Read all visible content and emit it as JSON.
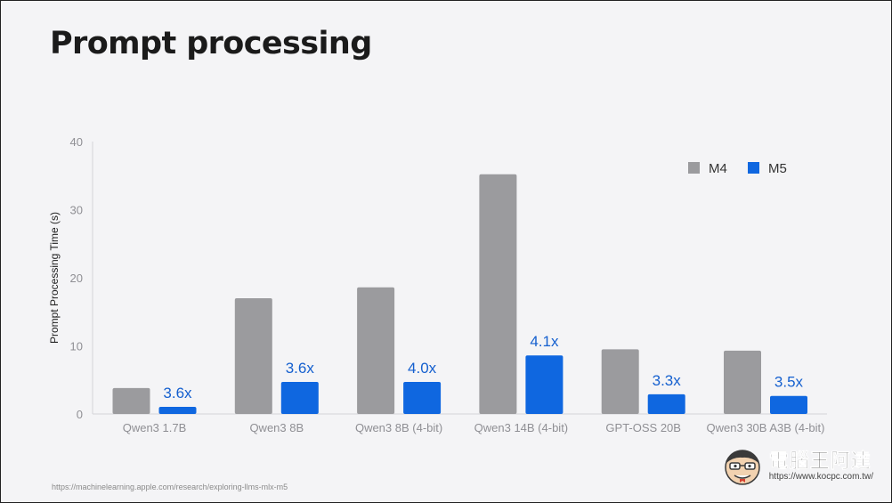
{
  "page": {
    "title": "Prompt processing",
    "source": "https://machinelearning.apple.com/research/exploring-llms-mlx-m5"
  },
  "watermark": {
    "brand": "電腦王阿達",
    "url": "https://www.kocpc.com.tw/"
  },
  "colors": {
    "m4": "#9b9b9e",
    "m5": "#0f67e0",
    "label": "#1560cf",
    "axis": "#d4d4d8",
    "tick": "#8f8f94"
  },
  "chart_data": {
    "type": "bar",
    "title": "Prompt processing",
    "xlabel": "",
    "ylabel": "Prompt Processing Time (s)",
    "ylim": [
      0,
      40
    ],
    "yticks": [
      0,
      10,
      20,
      30,
      40
    ],
    "grid": false,
    "legend": "top-right",
    "categories": [
      "Qwen3 1.7B",
      "Qwen3 8B",
      "Qwen3 8B (4-bit)",
      "Qwen3 14B (4-bit)",
      "GPT-OSS 20B",
      "Qwen3 30B A3B (4-bit)"
    ],
    "series": [
      {
        "name": "M4",
        "values": [
          3.8,
          17.0,
          18.6,
          35.2,
          9.5,
          9.3
        ]
      },
      {
        "name": "M5",
        "values": [
          1.05,
          4.7,
          4.7,
          8.6,
          2.9,
          2.65
        ]
      }
    ],
    "annotations": [
      "3.6x",
      "3.6x",
      "4.0x",
      "4.1x",
      "3.3x",
      "3.5x"
    ]
  }
}
